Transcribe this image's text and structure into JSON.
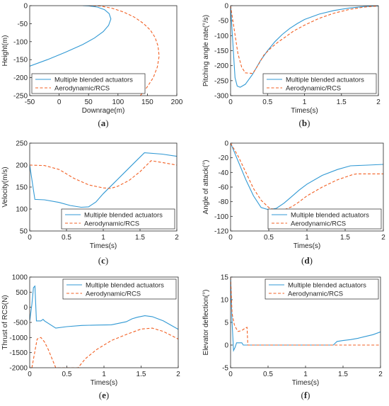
{
  "colors": {
    "blended": "#3199d4",
    "aero": "#f26024",
    "axis": "#262626"
  },
  "chart_data": [
    {
      "type": "line",
      "panel_label": "a",
      "xlabel": "Downrage(m)",
      "ylabel": "Height(m)",
      "xlim": [
        -50,
        200
      ],
      "ylim": [
        -250,
        0
      ],
      "xticks": [
        -50,
        0,
        50,
        100,
        150,
        200
      ],
      "yticks": [
        -250,
        -200,
        -150,
        -100,
        -50,
        0
      ],
      "legend": "top-left",
      "series": [
        {
          "name": "Multiple blended actuators",
          "style": "solid",
          "points": [
            [
              -50,
              -168
            ],
            [
              -20,
              -150
            ],
            [
              10,
              -130
            ],
            [
              40,
              -108
            ],
            [
              60,
              -90
            ],
            [
              75,
              -72
            ],
            [
              84,
              -55
            ],
            [
              88,
              -37
            ],
            [
              85,
              -22
            ],
            [
              77,
              -11
            ],
            [
              65,
              -4
            ],
            [
              50,
              -0.5
            ],
            [
              40,
              0
            ]
          ]
        },
        {
          "name": "Aerodynamic/RCS",
          "style": "dashed",
          "points": [
            [
              138,
              -250
            ],
            [
              150,
              -225
            ],
            [
              160,
              -200
            ],
            [
              167,
              -170
            ],
            [
              170,
              -140
            ],
            [
              168,
              -112
            ],
            [
              163,
              -88
            ],
            [
              155,
              -68
            ],
            [
              143,
              -49
            ],
            [
              128,
              -32
            ],
            [
              110,
              -18
            ],
            [
              90,
              -7
            ],
            [
              70,
              -1
            ],
            [
              50,
              0
            ]
          ]
        }
      ]
    },
    {
      "type": "line",
      "panel_label": "b",
      "xlabel": "Times(s)",
      "ylabel": "Pitching angle rate(°/s)",
      "xlim": [
        0,
        2
      ],
      "ylim": [
        -300,
        0
      ],
      "xticks": [
        0,
        0.5,
        1,
        1.5,
        2
      ],
      "yticks": [
        -300,
        -250,
        -200,
        -150,
        -100,
        -50,
        0
      ],
      "legend": "bottom-right",
      "series": [
        {
          "name": "Multiple blended actuators",
          "style": "solid",
          "points": [
            [
              0,
              0
            ],
            [
              0.03,
              -120
            ],
            [
              0.06,
              -240
            ],
            [
              0.09,
              -268
            ],
            [
              0.13,
              -272
            ],
            [
              0.2,
              -262
            ],
            [
              0.3,
              -228
            ],
            [
              0.4,
              -185
            ],
            [
              0.5,
              -150
            ],
            [
              0.6,
              -120
            ],
            [
              0.7,
              -96
            ],
            [
              0.8,
              -76
            ],
            [
              0.9,
              -60
            ],
            [
              1.0,
              -46
            ],
            [
              1.2,
              -28
            ],
            [
              1.4,
              -16
            ],
            [
              1.6,
              -8
            ],
            [
              1.8,
              -3
            ],
            [
              2.0,
              -1
            ]
          ]
        },
        {
          "name": "Aerodynamic/RCS",
          "style": "dashed",
          "points": [
            [
              0,
              0
            ],
            [
              0.05,
              -80
            ],
            [
              0.1,
              -160
            ],
            [
              0.15,
              -205
            ],
            [
              0.2,
              -224
            ],
            [
              0.3,
              -226
            ],
            [
              0.38,
              -195
            ],
            [
              0.45,
              -165
            ],
            [
              0.55,
              -140
            ],
            [
              0.65,
              -120
            ],
            [
              0.75,
              -103
            ],
            [
              0.85,
              -85
            ],
            [
              1.0,
              -65
            ],
            [
              1.2,
              -42
            ],
            [
              1.4,
              -25
            ],
            [
              1.6,
              -13
            ],
            [
              1.8,
              -5
            ],
            [
              2.0,
              -1
            ]
          ]
        }
      ]
    },
    {
      "type": "line",
      "panel_label": "c",
      "xlabel": "Times(s)",
      "ylabel": "Velocity(m/s)",
      "xlim": [
        0,
        2
      ],
      "ylim": [
        50,
        250
      ],
      "xticks": [
        0,
        0.5,
        1,
        1.5,
        2
      ],
      "yticks": [
        50,
        100,
        150,
        200,
        250
      ],
      "legend": "bottom-right",
      "series": [
        {
          "name": "Multiple blended actuators",
          "style": "solid",
          "points": [
            [
              0,
              200
            ],
            [
              0.07,
              122
            ],
            [
              0.2,
              121
            ],
            [
              0.4,
              115
            ],
            [
              0.55,
              108
            ],
            [
              0.7,
              104
            ],
            [
              0.8,
              105
            ],
            [
              0.9,
              116
            ],
            [
              1.0,
              135
            ],
            [
              1.15,
              160
            ],
            [
              1.3,
              185
            ],
            [
              1.45,
              210
            ],
            [
              1.56,
              228
            ],
            [
              1.8,
              225
            ],
            [
              2.0,
              220
            ]
          ]
        },
        {
          "name": "Aerodynamic/RCS",
          "style": "dashed",
          "points": [
            [
              0,
              200
            ],
            [
              0.2,
              199
            ],
            [
              0.4,
              190
            ],
            [
              0.6,
              170
            ],
            [
              0.8,
              155
            ],
            [
              1.0,
              148
            ],
            [
              1.1,
              147
            ],
            [
              1.2,
              152
            ],
            [
              1.35,
              165
            ],
            [
              1.5,
              185
            ],
            [
              1.65,
              210
            ],
            [
              1.8,
              206
            ],
            [
              2.0,
              200
            ]
          ]
        }
      ]
    },
    {
      "type": "line",
      "panel_label": "d",
      "xlabel": "Times(s)",
      "ylabel": "Angle of attack(°)",
      "xlim": [
        0,
        2
      ],
      "ylim": [
        -120,
        0
      ],
      "xticks": [
        0,
        0.5,
        1,
        1.5,
        2
      ],
      "yticks": [
        -120,
        -100,
        -80,
        -60,
        -40,
        -20,
        0
      ],
      "legend": "bottom-right",
      "series": [
        {
          "name": "Multiple blended actuators",
          "style": "solid",
          "points": [
            [
              0,
              0
            ],
            [
              0.1,
              -25
            ],
            [
              0.2,
              -50
            ],
            [
              0.3,
              -72
            ],
            [
              0.4,
              -88
            ],
            [
              0.5,
              -91
            ],
            [
              0.6,
              -89
            ],
            [
              0.7,
              -82
            ],
            [
              0.8,
              -73
            ],
            [
              0.9,
              -64
            ],
            [
              1.0,
              -56
            ],
            [
              1.2,
              -44
            ],
            [
              1.4,
              -36
            ],
            [
              1.57,
              -31
            ],
            [
              1.8,
              -30
            ],
            [
              2.0,
              -29
            ]
          ]
        },
        {
          "name": "Aerodynamic/RCS",
          "style": "dashed",
          "points": [
            [
              0,
              0
            ],
            [
              0.1,
              -18
            ],
            [
              0.2,
              -40
            ],
            [
              0.3,
              -62
            ],
            [
              0.4,
              -78
            ],
            [
              0.5,
              -88
            ],
            [
              0.6,
              -92
            ],
            [
              0.7,
              -91
            ],
            [
              0.8,
              -87
            ],
            [
              0.9,
              -80
            ],
            [
              1.0,
              -72
            ],
            [
              1.2,
              -60
            ],
            [
              1.4,
              -50
            ],
            [
              1.6,
              -43
            ],
            [
              1.65,
              -42
            ],
            [
              2.0,
              -42
            ]
          ]
        }
      ]
    },
    {
      "type": "line",
      "panel_label": "e",
      "xlabel": "Times(s)",
      "ylabel": "Thrust of RCS(N)",
      "xlim": [
        0,
        2
      ],
      "ylim": [
        -2000,
        1000
      ],
      "xticks": [
        0,
        0.5,
        1,
        1.5,
        2
      ],
      "yticks": [
        -2000,
        -1500,
        -1000,
        -500,
        0,
        500,
        1000
      ],
      "legend": "top-right",
      "series": [
        {
          "name": "Multiple blended actuators",
          "style": "solid",
          "points": [
            [
              0,
              -450
            ],
            [
              0.03,
              100
            ],
            [
              0.05,
              650
            ],
            [
              0.07,
              700
            ],
            [
              0.09,
              -450
            ],
            [
              0.15,
              -450
            ],
            [
              0.18,
              -400
            ],
            [
              0.2,
              -450
            ],
            [
              0.35,
              -690
            ],
            [
              0.5,
              -640
            ],
            [
              0.7,
              -600
            ],
            [
              0.9,
              -590
            ],
            [
              1.1,
              -580
            ],
            [
              1.3,
              -480
            ],
            [
              1.38,
              -380
            ],
            [
              1.45,
              -330
            ],
            [
              1.55,
              -280
            ],
            [
              1.65,
              -310
            ],
            [
              1.8,
              -450
            ],
            [
              2.0,
              -730
            ]
          ]
        },
        {
          "name": "Aerodynamic/RCS",
          "style": "dashed",
          "points": [
            [
              0.03,
              -2000
            ],
            [
              0.1,
              -1050
            ],
            [
              0.15,
              -1000
            ],
            [
              0.2,
              -1150
            ],
            [
              0.25,
              -1400
            ],
            [
              0.3,
              -1700
            ],
            [
              0.35,
              -2000
            ],
            [
              0.65,
              -2000
            ],
            [
              0.75,
              -1700
            ],
            [
              0.9,
              -1400
            ],
            [
              1.1,
              -1100
            ],
            [
              1.3,
              -900
            ],
            [
              1.5,
              -720
            ],
            [
              1.65,
              -690
            ],
            [
              1.8,
              -800
            ],
            [
              2.0,
              -1050
            ]
          ]
        }
      ]
    },
    {
      "type": "line",
      "panel_label": "f",
      "xlabel": "Times(s)",
      "ylabel": "Elevator deflection(°)",
      "xlim": [
        0,
        2
      ],
      "ylim": [
        -5,
        15
      ],
      "xticks": [
        0,
        0.5,
        1,
        1.5,
        2
      ],
      "yticks": [
        -5,
        0,
        5,
        10,
        15
      ],
      "legend": "top-right",
      "series": [
        {
          "name": "Multiple blended actuators",
          "style": "solid",
          "points": [
            [
              0,
              15
            ],
            [
              0.02,
              5
            ],
            [
              0.04,
              -1.2
            ],
            [
              0.06,
              -0.5
            ],
            [
              0.08,
              0.5
            ],
            [
              0.15,
              0.5
            ],
            [
              0.17,
              0
            ],
            [
              0.2,
              0
            ],
            [
              0.5,
              0
            ],
            [
              1.0,
              0
            ],
            [
              1.37,
              0
            ],
            [
              1.42,
              0.8
            ],
            [
              1.5,
              1.0
            ],
            [
              1.6,
              1.2
            ],
            [
              1.7,
              1.5
            ],
            [
              1.8,
              1.9
            ],
            [
              1.9,
              2.3
            ],
            [
              2.0,
              2.9
            ]
          ]
        },
        {
          "name": "Aerodynamic/RCS",
          "style": "dashed",
          "points": [
            [
              0,
              15
            ],
            [
              0.02,
              7
            ],
            [
              0.05,
              4.5
            ],
            [
              0.08,
              3.5
            ],
            [
              0.1,
              3.0
            ],
            [
              0.15,
              3.2
            ],
            [
              0.2,
              3.8
            ],
            [
              0.22,
              3.9
            ],
            [
              0.23,
              0
            ],
            [
              0.25,
              0
            ],
            [
              0.5,
              0
            ],
            [
              1.0,
              0
            ],
            [
              1.5,
              0
            ],
            [
              2.0,
              0
            ]
          ]
        }
      ]
    }
  ]
}
